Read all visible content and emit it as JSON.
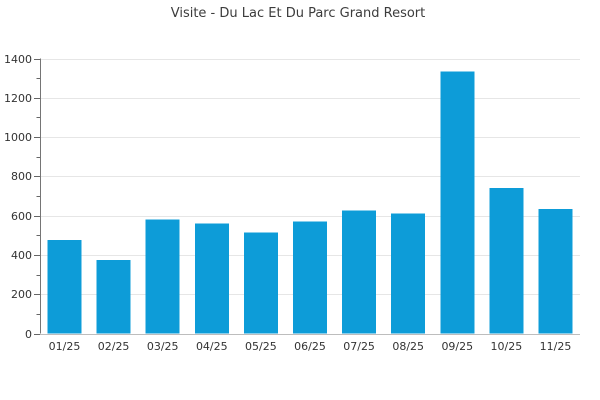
{
  "chart_data": {
    "type": "bar",
    "title": "Visite - Du Lac Et Du Parc Grand Resort",
    "categories": [
      "01/25",
      "02/25",
      "03/25",
      "04/25",
      "05/25",
      "06/25",
      "07/25",
      "08/25",
      "09/25",
      "10/25",
      "11/25"
    ],
    "values": [
      475,
      375,
      580,
      560,
      515,
      570,
      625,
      610,
      1335,
      740,
      635
    ],
    "xlabel": "",
    "ylabel": "",
    "ylim": [
      0,
      1400
    ],
    "ytick_major_step": 200,
    "ytick_minor_step": 100,
    "grid": true,
    "legend": false,
    "colors": {
      "bar": "#0d9cd8",
      "gridline": "#e6e6e6",
      "y_axis_line": "#757575",
      "x_axis_line": "#bdbdbd",
      "tick": "#666666",
      "tick_label": "#333333",
      "title": "#3c3c3c",
      "background": "#ffffff"
    }
  }
}
